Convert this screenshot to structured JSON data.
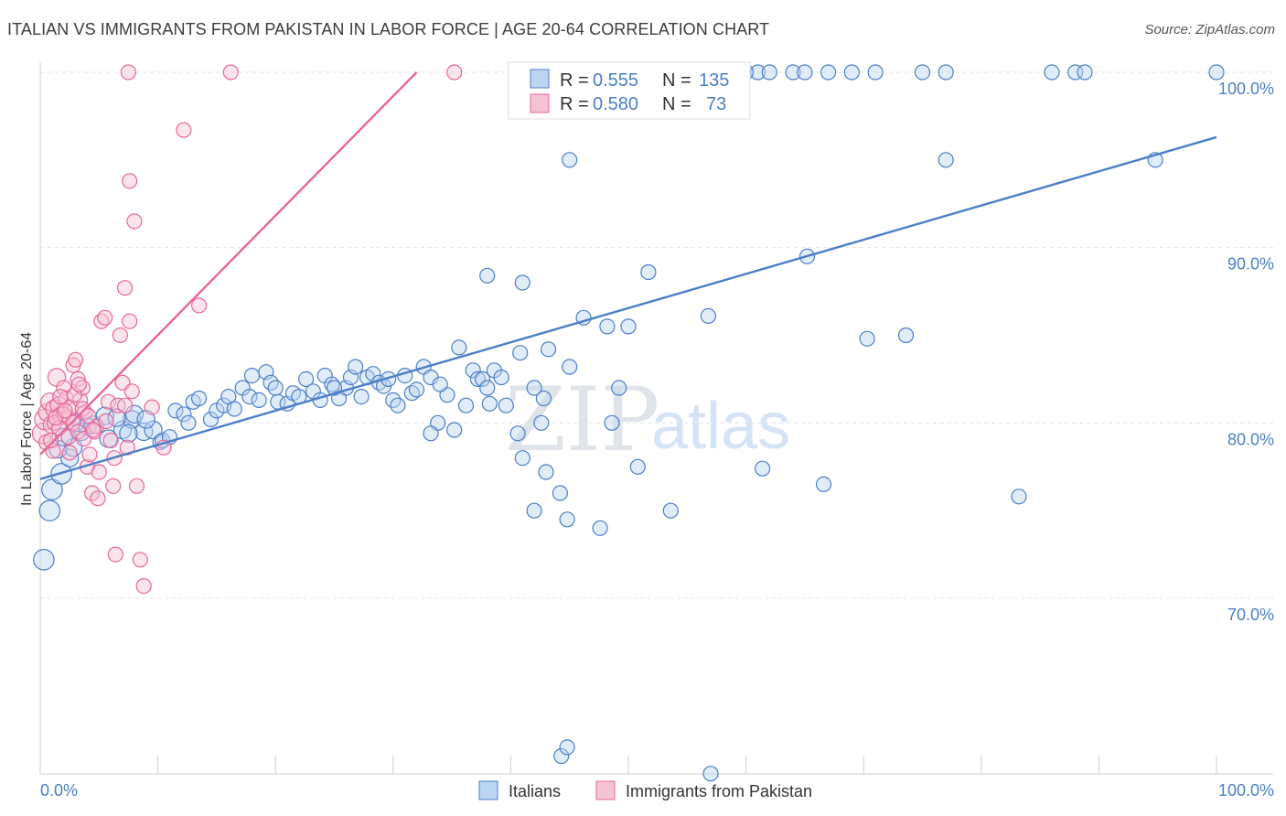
{
  "title": "ITALIAN VS IMMIGRANTS FROM PAKISTAN IN LABOR FORCE | AGE 20-64 CORRELATION CHART",
  "source": "Source: ZipAtlas.com",
  "watermark": {
    "zip": "ZIP",
    "atlas": "atlas"
  },
  "chart_data": {
    "type": "scatter",
    "ylabel": "In Labor Force | Age 20-64",
    "xlim": [
      0,
      100
    ],
    "ylim": [
      60,
      102
    ],
    "x_tick_labels": [
      "0.0%",
      "100.0%"
    ],
    "y_ticks": [
      70,
      80,
      90,
      100
    ],
    "y_tick_labels": [
      "70.0%",
      "80.0%",
      "90.0%",
      "100.0%"
    ],
    "grid": "horizontal dashed",
    "legend": {
      "position": "top-center",
      "rows": [
        {
          "r_label": "R =",
          "r_value": "0.555",
          "n_label": "N =",
          "n_value": "135",
          "color": "#4a7fc8"
        },
        {
          "r_label": "R =",
          "r_value": "0.580",
          "n_label": "N =",
          "n_value": "73",
          "color": "#e8669a"
        }
      ]
    },
    "bottom_legend": [
      "Italians",
      "Immigrants from Pakistan"
    ],
    "series": [
      {
        "name": "Italians",
        "color": "#4a7fc8",
        "fill": "#bcd5f2",
        "trend": {
          "x": [
            0,
            100
          ],
          "y": [
            76.8,
            96.3
          ]
        },
        "points": [
          [
            0.3,
            72.2,
            14
          ],
          [
            0.8,
            75.0,
            14
          ],
          [
            1.0,
            76.2,
            14
          ],
          [
            1.8,
            77.1,
            14
          ],
          [
            2.5,
            78.0,
            12
          ],
          [
            2.8,
            78.6,
            12
          ],
          [
            3.5,
            79.5,
            12
          ],
          [
            4.5,
            79.9,
            12
          ],
          [
            5.8,
            79.1,
            12
          ],
          [
            5.5,
            80.4,
            12
          ],
          [
            7.0,
            79.6,
            12
          ],
          [
            7.8,
            80.2,
            12
          ],
          [
            8.0,
            80.5,
            12
          ],
          [
            8.8,
            79.5,
            12
          ],
          [
            9.6,
            79.6,
            12
          ],
          [
            10.2,
            78.9,
            10
          ],
          [
            10.4,
            79.0,
            10
          ],
          [
            11.0,
            79.2,
            10
          ],
          [
            11.5,
            80.7,
            10
          ],
          [
            12.2,
            80.5,
            10
          ],
          [
            12.6,
            80.0,
            10
          ],
          [
            13.0,
            81.2,
            10
          ],
          [
            13.5,
            81.4,
            10
          ],
          [
            14.5,
            80.2,
            10
          ],
          [
            15.0,
            80.7,
            10
          ],
          [
            15.6,
            81.0,
            10
          ],
          [
            16.0,
            81.5,
            10
          ],
          [
            16.5,
            80.8,
            10
          ],
          [
            17.2,
            82.0,
            10
          ],
          [
            17.8,
            81.5,
            10
          ],
          [
            18.0,
            82.7,
            10
          ],
          [
            18.6,
            81.3,
            10
          ],
          [
            19.2,
            82.9,
            10
          ],
          [
            19.6,
            82.3,
            10
          ],
          [
            20.2,
            81.2,
            10
          ],
          [
            21.0,
            81.1,
            10
          ],
          [
            21.5,
            81.7,
            10
          ],
          [
            22.0,
            81.5,
            10
          ],
          [
            22.6,
            82.5,
            10
          ],
          [
            23.2,
            81.8,
            10
          ],
          [
            23.8,
            81.3,
            10
          ],
          [
            24.2,
            82.7,
            10
          ],
          [
            24.8,
            82.2,
            10
          ],
          [
            25.4,
            81.4,
            10
          ],
          [
            26.0,
            82.0,
            10
          ],
          [
            26.4,
            82.6,
            10
          ],
          [
            26.8,
            83.2,
            10
          ],
          [
            27.3,
            81.5,
            10
          ],
          [
            27.8,
            82.6,
            10
          ],
          [
            28.3,
            82.8,
            10
          ],
          [
            28.8,
            82.3,
            10
          ],
          [
            29.2,
            82.1,
            10
          ],
          [
            30.0,
            81.3,
            10
          ],
          [
            30.4,
            81.0,
            10
          ],
          [
            31.0,
            82.7,
            10
          ],
          [
            31.6,
            81.7,
            10
          ],
          [
            32.0,
            81.9,
            10
          ],
          [
            32.6,
            83.2,
            10
          ],
          [
            33.2,
            82.6,
            10
          ],
          [
            33.8,
            80.0,
            10
          ],
          [
            33.2,
            79.4,
            10
          ],
          [
            34.6,
            81.6,
            10
          ],
          [
            35.6,
            84.3,
            10
          ],
          [
            35.2,
            79.6,
            10
          ],
          [
            36.2,
            81.0,
            10
          ],
          [
            36.8,
            83.0,
            10
          ],
          [
            37.2,
            82.5,
            10
          ],
          [
            37.6,
            82.5,
            10
          ],
          [
            38.2,
            81.1,
            10
          ],
          [
            38.6,
            83.0,
            10
          ],
          [
            39.2,
            82.6,
            10
          ],
          [
            39.6,
            81.0,
            10
          ],
          [
            40.6,
            79.4,
            10
          ],
          [
            40.8,
            84.0,
            10
          ],
          [
            41.0,
            78.0,
            10
          ],
          [
            42.0,
            75.0,
            10
          ],
          [
            42.6,
            80.0,
            10
          ],
          [
            42.8,
            81.4,
            10
          ],
          [
            43.0,
            77.2,
            10
          ],
          [
            43.2,
            84.2,
            10
          ],
          [
            44.2,
            76.0,
            10
          ],
          [
            44.8,
            74.5,
            10
          ],
          [
            45.0,
            83.2,
            10
          ],
          [
            46.2,
            86.0,
            10
          ],
          [
            47.6,
            74.0,
            10
          ],
          [
            48.2,
            85.5,
            10
          ],
          [
            48.6,
            80.0,
            10
          ],
          [
            49.2,
            82.0,
            10
          ],
          [
            50.0,
            85.5,
            10
          ],
          [
            50.8,
            77.5,
            10
          ],
          [
            51.7,
            88.6,
            10
          ],
          [
            53.6,
            75.0,
            10
          ],
          [
            56.8,
            86.1,
            10
          ],
          [
            61.4,
            77.4,
            10
          ],
          [
            65.2,
            89.5,
            10
          ],
          [
            66.6,
            76.5,
            10
          ],
          [
            70.3,
            84.8,
            10
          ],
          [
            73.6,
            85.0,
            10
          ],
          [
            83.2,
            75.8,
            10
          ],
          [
            94.8,
            95.0,
            10
          ],
          [
            38.0,
            88.4,
            10
          ],
          [
            41.0,
            88.0,
            10
          ],
          [
            45.0,
            95.0,
            10
          ],
          [
            77.0,
            95.0,
            10
          ],
          [
            44.3,
            61.0,
            10
          ],
          [
            44.8,
            61.5,
            10
          ],
          [
            57.0,
            60.0,
            10
          ],
          [
            1.5,
            78.5,
            12
          ],
          [
            2.0,
            79.2,
            12
          ],
          [
            3.0,
            80.0,
            12
          ],
          [
            4.0,
            79.8,
            12
          ],
          [
            6.5,
            80.3,
            12
          ],
          [
            7.5,
            79.4,
            12
          ],
          [
            9.0,
            80.2,
            12
          ],
          [
            20.0,
            82.0,
            10
          ],
          [
            25.0,
            82.0,
            10
          ],
          [
            29.6,
            82.5,
            10
          ],
          [
            34.0,
            82.2,
            10
          ],
          [
            38.0,
            82.0,
            10
          ],
          [
            42.0,
            82.0,
            10
          ],
          [
            48.0,
            100.0,
            10
          ],
          [
            50.0,
            100.0,
            10
          ],
          [
            51.0,
            100.0,
            10
          ],
          [
            52.0,
            100.0,
            10
          ],
          [
            54.0,
            100.0,
            10
          ],
          [
            55.0,
            100.0,
            10
          ],
          [
            58.0,
            100.0,
            10
          ],
          [
            61.0,
            100.0,
            10
          ],
          [
            62.0,
            100.0,
            10
          ],
          [
            64.0,
            100.0,
            10
          ],
          [
            71.0,
            100.0,
            10
          ],
          [
            75.0,
            100.0,
            10
          ],
          [
            77.0,
            100.0,
            10
          ],
          [
            86.0,
            100.0,
            10
          ],
          [
            88.0,
            100.0,
            10
          ],
          [
            88.8,
            100.0,
            10
          ],
          [
            100.0,
            100.0,
            10
          ],
          [
            60.0,
            100.0,
            10
          ],
          [
            65.0,
            100.0,
            10
          ],
          [
            67.0,
            100.0,
            10
          ],
          [
            69.0,
            100.0,
            10
          ]
        ]
      },
      {
        "name": "Immigrants from Pakistan",
        "color": "#e8669a",
        "fill": "#f6c3d5",
        "trend": {
          "x": [
            0,
            32
          ],
          "y": [
            78.2,
            100.0
          ]
        },
        "points": [
          [
            0.2,
            79.4,
            14
          ],
          [
            0.4,
            80.2,
            14
          ],
          [
            0.6,
            80.6,
            12
          ],
          [
            0.8,
            81.2,
            12
          ],
          [
            1.0,
            79.9,
            12
          ],
          [
            1.2,
            80.8,
            12
          ],
          [
            1.4,
            82.6,
            12
          ],
          [
            1.6,
            81.0,
            12
          ],
          [
            1.8,
            80.4,
            12
          ],
          [
            2.0,
            82.0,
            10
          ],
          [
            2.2,
            81.4,
            10
          ],
          [
            2.4,
            80.3,
            10
          ],
          [
            2.6,
            80.9,
            10
          ],
          [
            2.8,
            83.3,
            10
          ],
          [
            3.0,
            83.6,
            10
          ],
          [
            3.2,
            82.5,
            10
          ],
          [
            3.4,
            81.3,
            10
          ],
          [
            3.6,
            82.0,
            10
          ],
          [
            3.8,
            80.6,
            10
          ],
          [
            4.0,
            77.5,
            10
          ],
          [
            4.2,
            78.2,
            10
          ],
          [
            4.4,
            76.0,
            10
          ],
          [
            4.6,
            79.5,
            10
          ],
          [
            4.8,
            79.8,
            10
          ],
          [
            5.0,
            77.2,
            10
          ],
          [
            5.2,
            85.8,
            10
          ],
          [
            5.5,
            86.0,
            10
          ],
          [
            5.8,
            81.2,
            10
          ],
          [
            6.0,
            79.0,
            10
          ],
          [
            6.2,
            76.4,
            10
          ],
          [
            6.4,
            72.5,
            10
          ],
          [
            6.6,
            81.0,
            10
          ],
          [
            6.8,
            85.0,
            10
          ],
          [
            7.0,
            82.3,
            10
          ],
          [
            7.2,
            81.0,
            10
          ],
          [
            7.4,
            78.6,
            10
          ],
          [
            7.6,
            85.8,
            10
          ],
          [
            7.8,
            81.8,
            10
          ],
          [
            8.0,
            91.5,
            10
          ],
          [
            8.2,
            76.4,
            10
          ],
          [
            8.5,
            72.2,
            10
          ],
          [
            8.8,
            70.7,
            10
          ],
          [
            7.5,
            100.0,
            10
          ],
          [
            16.2,
            100.0,
            10
          ],
          [
            35.2,
            100.0,
            10
          ],
          [
            12.2,
            96.7,
            10
          ],
          [
            7.6,
            93.8,
            10
          ],
          [
            7.2,
            87.7,
            10
          ],
          [
            13.5,
            86.7,
            10
          ],
          [
            1.2,
            80.0,
            10
          ],
          [
            1.6,
            79.7,
            10
          ],
          [
            2.0,
            80.5,
            10
          ],
          [
            2.4,
            79.2,
            10
          ],
          [
            2.8,
            80.0,
            10
          ],
          [
            3.2,
            79.5,
            10
          ],
          [
            3.6,
            80.8,
            10
          ],
          [
            0.5,
            78.9,
            10
          ],
          [
            1.1,
            78.4,
            10
          ],
          [
            0.9,
            79.0,
            10
          ],
          [
            1.3,
            80.3,
            10
          ],
          [
            1.7,
            81.5,
            10
          ],
          [
            2.1,
            80.7,
            10
          ],
          [
            2.5,
            78.3,
            10
          ],
          [
            2.9,
            81.6,
            10
          ],
          [
            3.3,
            82.2,
            10
          ],
          [
            3.7,
            79.1,
            10
          ],
          [
            4.1,
            80.4,
            10
          ],
          [
            4.5,
            79.6,
            10
          ],
          [
            10.5,
            78.6,
            10
          ],
          [
            9.5,
            80.9,
            10
          ],
          [
            5.6,
            80.1,
            10
          ],
          [
            6.3,
            78.0,
            10
          ],
          [
            4.9,
            75.7,
            10
          ]
        ]
      }
    ]
  }
}
